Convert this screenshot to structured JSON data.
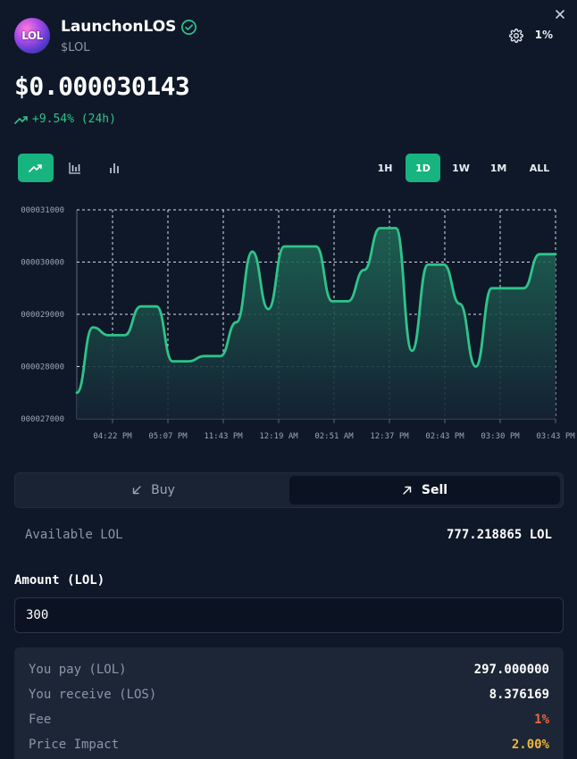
{
  "token": {
    "logo_text": "LOL",
    "name": "LaunchonLOS",
    "symbol": "$LOL",
    "slippage": "1%"
  },
  "price": {
    "value": "$0.000030143",
    "change": "+9.54% (24h)"
  },
  "chart_types": [
    "line-chart-icon",
    "candlestick-icon",
    "volume-bars-icon"
  ],
  "timeframes": {
    "h1": "1H",
    "d1": "1D",
    "w1": "1W",
    "m1": "1M",
    "all": "ALL",
    "active": "1D"
  },
  "colors": {
    "accent": "#17b47f",
    "line": "#2ec38a",
    "fee": "#f2683a",
    "impact": "#f1b73a"
  },
  "chart_data": {
    "type": "line",
    "y_ticks": [
      "000031000",
      "000030000",
      "000029000",
      "000028000",
      "000027000"
    ],
    "x_ticks": [
      "04:22 PM",
      "05:07 PM",
      "11:43 PM",
      "12:19 AM",
      "02:51 AM",
      "12:37 PM",
      "02:43 PM",
      "03:30 PM",
      "03:43 PM"
    ],
    "ylim": [
      27000,
      31000
    ],
    "grid": true,
    "series": [
      {
        "values": [
          27500,
          28750,
          28600,
          28600,
          29150,
          29150,
          28100,
          28100,
          28200,
          28200,
          28850,
          30200,
          29100,
          30300,
          30300,
          30300,
          29250,
          29250,
          29850,
          30650,
          30650,
          28300,
          29950,
          29950,
          29200,
          28000,
          29500,
          29500,
          29500,
          30150,
          30150
        ]
      }
    ]
  },
  "trade": {
    "buy_label": "Buy",
    "sell_label": "Sell",
    "active": "Sell",
    "available_label": "Available LOL",
    "available_value": "777.218865 LOL",
    "amount_label": "Amount (LOL)",
    "amount_value": "300"
  },
  "summary": {
    "pay_label": "You pay (LOL)",
    "pay_value": "297.000000",
    "receive_label": "You receive (LOS)",
    "receive_value": "8.376169",
    "fee_label": "Fee",
    "fee_value": "1%",
    "impact_label": "Price Impact",
    "impact_value": "2.00%"
  }
}
